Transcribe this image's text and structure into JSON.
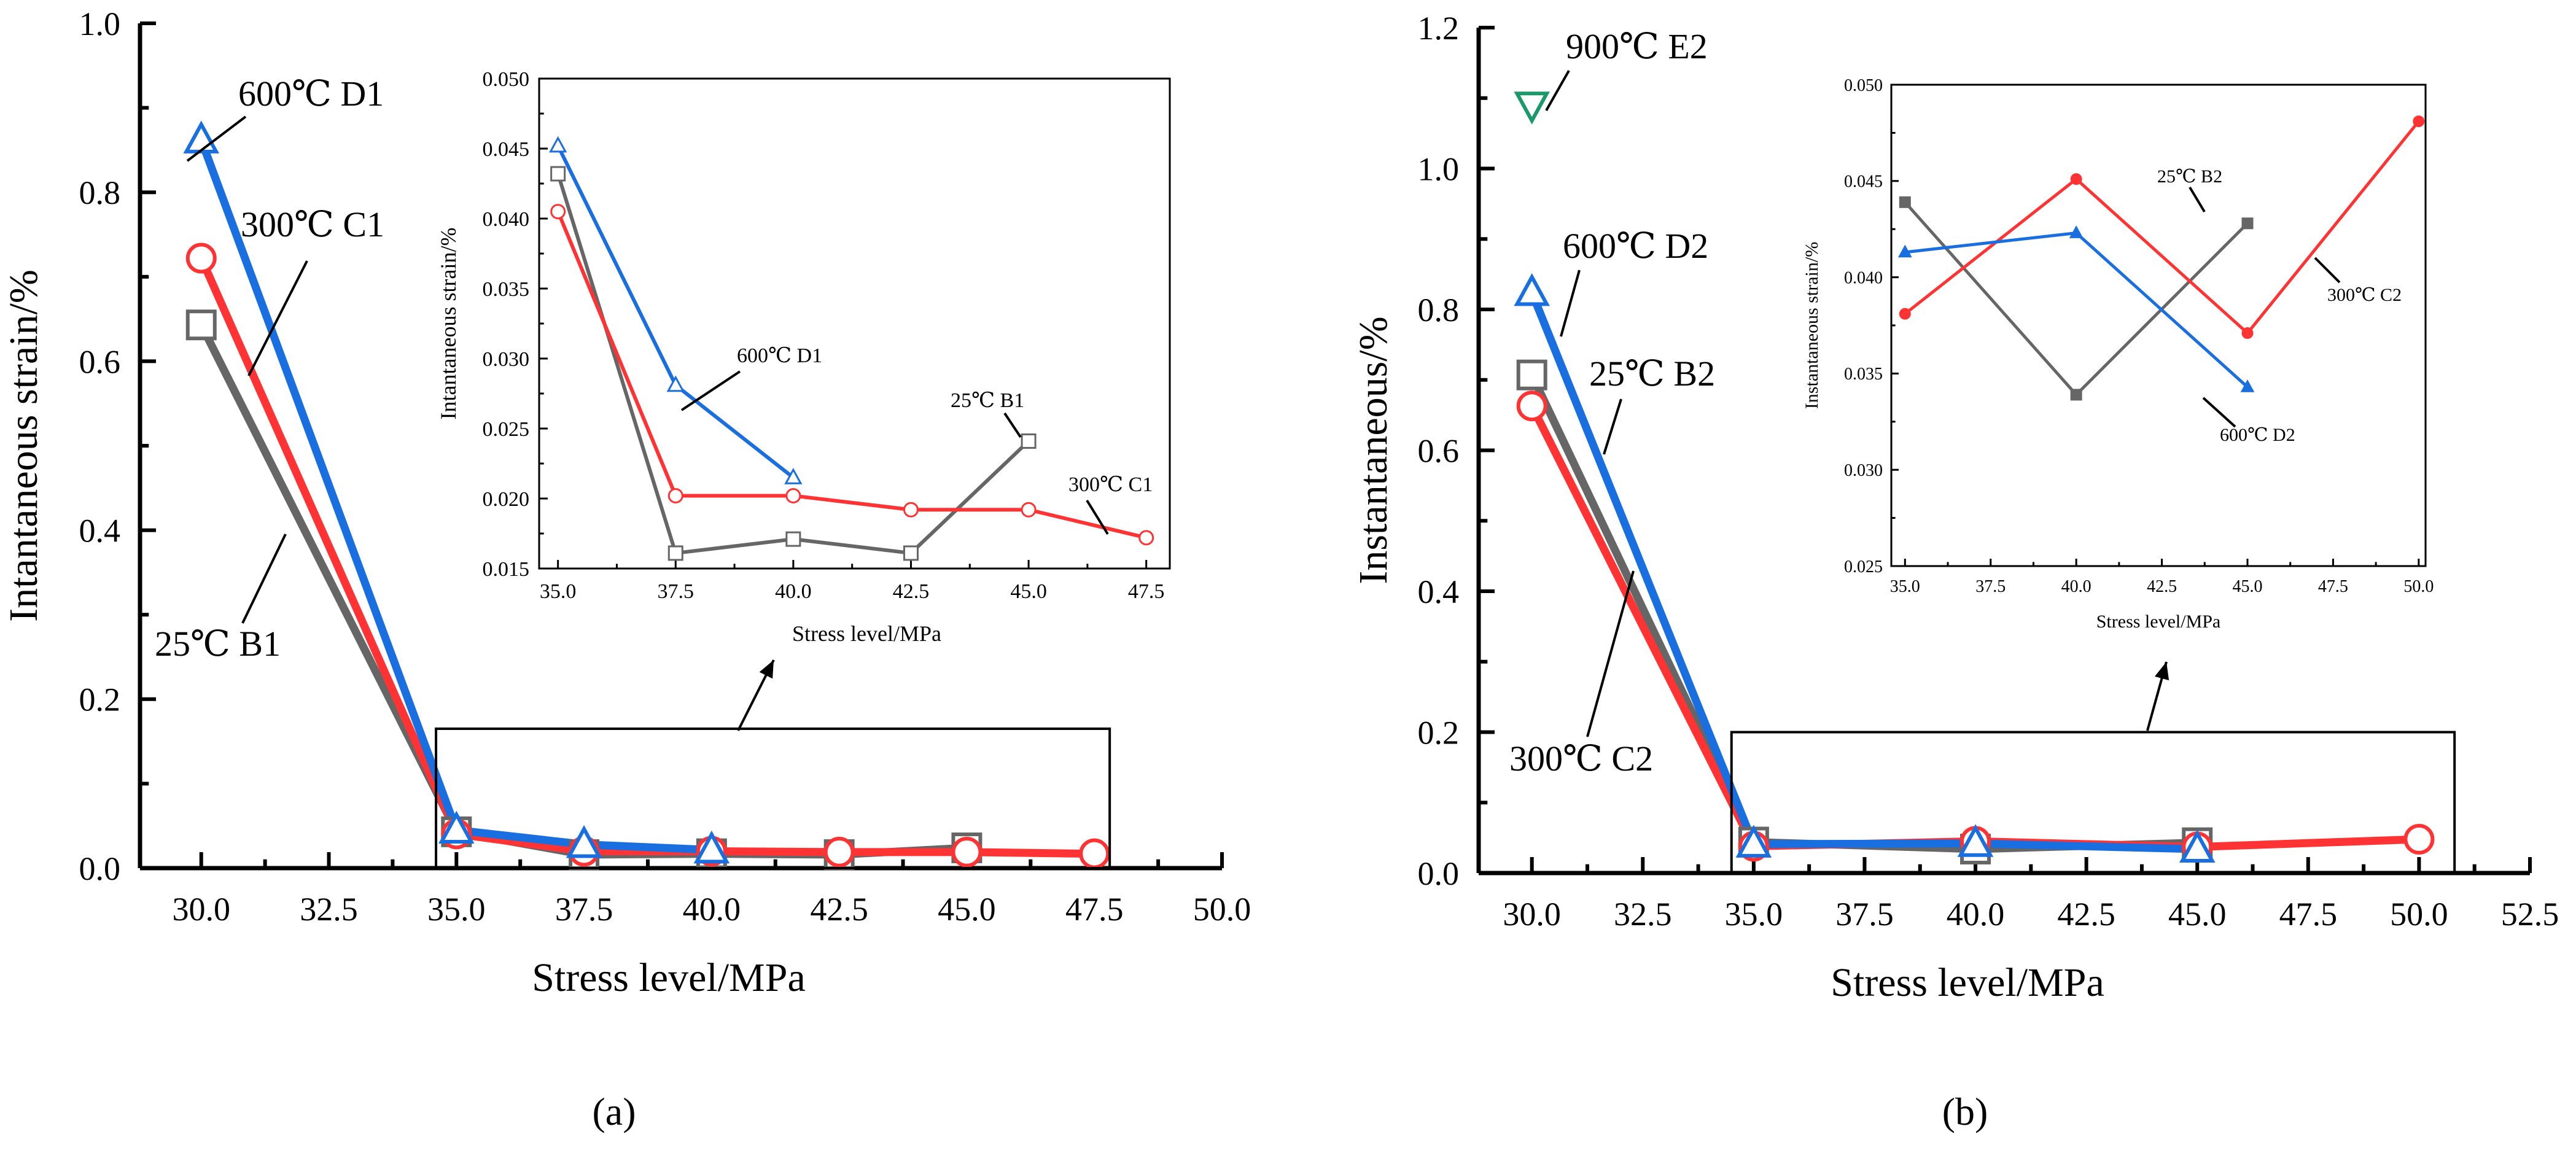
{
  "colors": {
    "b_series": "#666666",
    "c_series": "#ff3333",
    "d_series": "#1a6fe0",
    "e_series": "#1a9a6a",
    "axis": "#000000"
  },
  "chart_data": [
    {
      "id": "a-main",
      "panel_label": "(a)",
      "type": "line",
      "xlabel": "Stress level/MPa",
      "ylabel": "Intantaneous strain/%",
      "xlim": [
        28.8,
        50.0
      ],
      "ylim": [
        0,
        1.0
      ],
      "xticks": [
        "30.0",
        "32.5",
        "35.0",
        "37.5",
        "40.0",
        "42.5",
        "45.0",
        "47.5",
        "50.0"
      ],
      "yticks": [
        "0.0",
        "0.2",
        "0.4",
        "0.6",
        "0.8",
        "1.0"
      ],
      "series": [
        {
          "name": "25℃ B1",
          "color": "#666666",
          "marker": "square",
          "x": [
            30,
            35,
            37.5,
            40,
            42.5,
            45
          ],
          "y": [
            0.643,
            0.043,
            0.016,
            0.017,
            0.016,
            0.024
          ]
        },
        {
          "name": "300℃ C1",
          "color": "#ff3333",
          "marker": "circle",
          "x": [
            30,
            35,
            37.5,
            40,
            42.5,
            45,
            47.5
          ],
          "y": [
            0.722,
            0.0405,
            0.02,
            0.02,
            0.019,
            0.019,
            0.017
          ]
        },
        {
          "name": "600℃ D1",
          "color": "#1a6fe0",
          "marker": "triangle",
          "x": [
            30,
            35,
            37.5,
            40
          ],
          "y": [
            0.862,
            0.045,
            0.028,
            0.0215
          ]
        }
      ],
      "annotations": [
        "600℃ D1",
        "300℃ C1",
        "25℃ B1"
      ],
      "zoom_box": {
        "x": [
          34.6,
          47.8
        ],
        "y": [
          0,
          0.165
        ]
      }
    },
    {
      "id": "a-inset",
      "type": "line",
      "xlabel": "Stress level/MPa",
      "ylabel": "Intantaneous strain/%",
      "xlim": [
        34.6,
        48.0
      ],
      "ylim": [
        0.015,
        0.05
      ],
      "xticks": [
        "35.0",
        "37.5",
        "40.0",
        "42.5",
        "45.0",
        "47.5"
      ],
      "yticks": [
        "0.015",
        "0.020",
        "0.025",
        "0.030",
        "0.035",
        "0.040",
        "0.045",
        "0.050"
      ],
      "series": [
        {
          "name": "25℃ B1",
          "color": "#666666",
          "marker": "square",
          "x": [
            35,
            37.5,
            40,
            42.5,
            45
          ],
          "y": [
            0.0432,
            0.0161,
            0.0171,
            0.0161,
            0.0241
          ]
        },
        {
          "name": "300℃ C1",
          "color": "#ff3333",
          "marker": "circle",
          "x": [
            35,
            37.5,
            40,
            42.5,
            45,
            47.5
          ],
          "y": [
            0.0405,
            0.0202,
            0.0202,
            0.0192,
            0.0192,
            0.0172
          ]
        },
        {
          "name": "600℃ D1",
          "color": "#1a6fe0",
          "marker": "triangle",
          "x": [
            35,
            37.5,
            40
          ],
          "y": [
            0.0452,
            0.0281,
            0.0215
          ]
        }
      ],
      "annotations": [
        "600℃ D1",
        "25℃ B1",
        "300℃  C1"
      ]
    },
    {
      "id": "b-main",
      "panel_label": "(b)",
      "type": "line",
      "xlabel": "Stress level/MPa",
      "ylabel": "Instantaneous/%",
      "xlim": [
        28.8,
        52.5
      ],
      "ylim": [
        0,
        1.2
      ],
      "xticks": [
        "30.0",
        "32.5",
        "35.0",
        "37.5",
        "40.0",
        "42.5",
        "45.0",
        "47.5",
        "50.0",
        "52.5"
      ],
      "yticks": [
        "0.0",
        "0.2",
        "0.4",
        "0.6",
        "0.8",
        "1.0",
        "1.2"
      ],
      "series": [
        {
          "name": "25℃ B2",
          "color": "#666666",
          "marker": "square",
          "x": [
            30,
            35,
            40,
            45
          ],
          "y": [
            0.707,
            0.044,
            0.034,
            0.043
          ]
        },
        {
          "name": "300℃ C2",
          "color": "#ff3333",
          "marker": "circle",
          "x": [
            30,
            35,
            40,
            45,
            50
          ],
          "y": [
            0.663,
            0.038,
            0.045,
            0.037,
            0.048
          ]
        },
        {
          "name": "600℃ D2",
          "color": "#1a6fe0",
          "marker": "triangle",
          "x": [
            30,
            35,
            40,
            45
          ],
          "y": [
            0.824,
            0.041,
            0.042,
            0.034
          ]
        },
        {
          "name": "900℃ E2",
          "color": "#1a9a6a",
          "marker": "triangle-down",
          "x": [
            30
          ],
          "y": [
            1.09
          ]
        }
      ],
      "annotations": [
        "900℃ E2",
        "600℃ D2",
        "25℃ B2",
        "300℃ C2"
      ],
      "zoom_box": {
        "x": [
          34.5,
          50.8
        ],
        "y": [
          0,
          0.2
        ]
      }
    },
    {
      "id": "b-inset",
      "type": "line",
      "xlabel": "Stress level/MPa",
      "ylabel": "Instantaneous strain/%",
      "xlim": [
        34.6,
        50.2
      ],
      "ylim": [
        0.025,
        0.05
      ],
      "xticks": [
        "35.0",
        "37.5",
        "40.0",
        "42.5",
        "45.0",
        "47.5",
        "50.0"
      ],
      "yticks": [
        "0.025",
        "0.030",
        "0.035",
        "0.040",
        "0.045",
        "0.050"
      ],
      "series": [
        {
          "name": "25℃ B2",
          "color": "#666666",
          "marker": "square",
          "x": [
            35,
            40,
            45
          ],
          "y": [
            0.0439,
            0.0339,
            0.0428
          ]
        },
        {
          "name": "300℃ C2",
          "color": "#ff3333",
          "marker": "circle",
          "x": [
            35,
            40,
            45,
            50
          ],
          "y": [
            0.0381,
            0.0451,
            0.0371,
            0.0481
          ]
        },
        {
          "name": "600℃ D2",
          "color": "#1a6fe0",
          "marker": "triangle",
          "x": [
            35,
            40,
            45
          ],
          "y": [
            0.0413,
            0.0423,
            0.0343
          ]
        }
      ],
      "annotations": [
        "25℃ B2",
        "300℃ C2",
        "600℃ D2"
      ]
    }
  ]
}
